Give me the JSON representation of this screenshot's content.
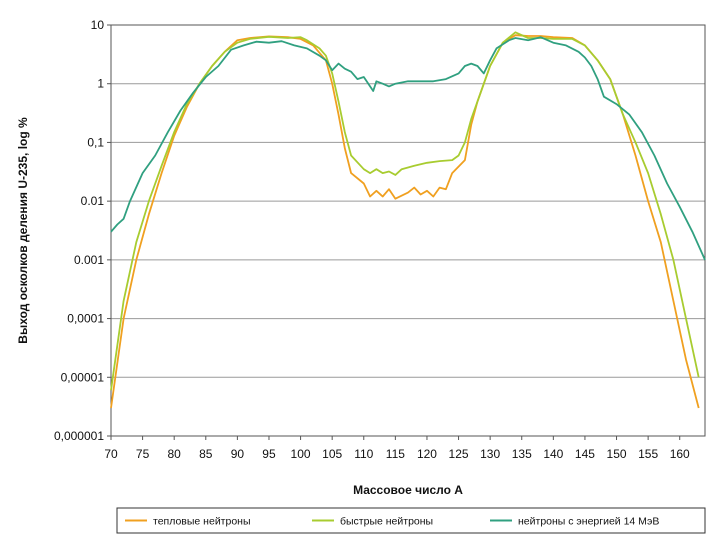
{
  "chart_data": {
    "type": "line",
    "title": "",
    "xlabel": "Массовое число А",
    "ylabel": "Выход осколков деления U-235, log %",
    "y_scale": "log",
    "xlim": [
      70,
      164
    ],
    "ylim": [
      1e-06,
      10
    ],
    "x_ticks": [
      70,
      75,
      80,
      85,
      90,
      95,
      100,
      105,
      110,
      115,
      120,
      125,
      130,
      135,
      140,
      145,
      150,
      155,
      160
    ],
    "y_ticks": [
      {
        "value": 10,
        "label": "10"
      },
      {
        "value": 1,
        "label": "1"
      },
      {
        "value": 0.1,
        "label": "0,1"
      },
      {
        "value": 0.01,
        "label": "0.01"
      },
      {
        "value": 0.001,
        "label": "0.001"
      },
      {
        "value": 0.0001,
        "label": "0,0001"
      },
      {
        "value": 1e-05,
        "label": "0,00001"
      },
      {
        "value": 1e-06,
        "label": "0,000001"
      }
    ],
    "grid": "horizontal",
    "legend_position": "bottom",
    "series": [
      {
        "name": "тепловые нейтроны",
        "color": "#f0a020",
        "points": [
          [
            70,
            3e-06
          ],
          [
            72,
            0.0001
          ],
          [
            74,
            0.001
          ],
          [
            76,
            0.006
          ],
          [
            78,
            0.03
          ],
          [
            80,
            0.13
          ],
          [
            82,
            0.4
          ],
          [
            84,
            1.0
          ],
          [
            86,
            2.0
          ],
          [
            88,
            3.5
          ],
          [
            90,
            5.5
          ],
          [
            92,
            6.0
          ],
          [
            95,
            6.4
          ],
          [
            98,
            6.2
          ],
          [
            100,
            5.8
          ],
          [
            102,
            4.5
          ],
          [
            104,
            2.5
          ],
          [
            105,
            1.0
          ],
          [
            106,
            0.3
          ],
          [
            107,
            0.08
          ],
          [
            108,
            0.03
          ],
          [
            110,
            0.02
          ],
          [
            111,
            0.012
          ],
          [
            112,
            0.015
          ],
          [
            113,
            0.012
          ],
          [
            114,
            0.016
          ],
          [
            115,
            0.011
          ],
          [
            117,
            0.014
          ],
          [
            118,
            0.017
          ],
          [
            119,
            0.013
          ],
          [
            120,
            0.015
          ],
          [
            121,
            0.012
          ],
          [
            122,
            0.017
          ],
          [
            123,
            0.016
          ],
          [
            124,
            0.03
          ],
          [
            126,
            0.05
          ],
          [
            127,
            0.2
          ],
          [
            128,
            0.5
          ],
          [
            130,
            2.0
          ],
          [
            132,
            5.0
          ],
          [
            134,
            6.7
          ],
          [
            136,
            6.5
          ],
          [
            138,
            6.5
          ],
          [
            140,
            6.2
          ],
          [
            143,
            6.0
          ],
          [
            145,
            4.5
          ],
          [
            147,
            2.5
          ],
          [
            149,
            1.2
          ],
          [
            151,
            0.3
          ],
          [
            153,
            0.06
          ],
          [
            155,
            0.01
          ],
          [
            157,
            0.002
          ],
          [
            159,
            0.0002
          ],
          [
            161,
            2e-05
          ],
          [
            163,
            3e-06
          ]
        ]
      },
      {
        "name": "быстрые нейтроны",
        "color": "#a8cc30",
        "points": [
          [
            70,
            6e-06
          ],
          [
            72,
            0.0002
          ],
          [
            74,
            0.002
          ],
          [
            76,
            0.01
          ],
          [
            78,
            0.04
          ],
          [
            80,
            0.15
          ],
          [
            82,
            0.45
          ],
          [
            84,
            1.0
          ],
          [
            86,
            2.0
          ],
          [
            88,
            3.5
          ],
          [
            90,
            5.0
          ],
          [
            92,
            5.8
          ],
          [
            95,
            6.3
          ],
          [
            98,
            6.0
          ],
          [
            100,
            6.2
          ],
          [
            101,
            5.5
          ],
          [
            103,
            4.0
          ],
          [
            104,
            3.0
          ],
          [
            105,
            1.5
          ],
          [
            106,
            0.5
          ],
          [
            107,
            0.15
          ],
          [
            108,
            0.06
          ],
          [
            110,
            0.035
          ],
          [
            111,
            0.03
          ],
          [
            112,
            0.035
          ],
          [
            113,
            0.03
          ],
          [
            114,
            0.032
          ],
          [
            115,
            0.028
          ],
          [
            116,
            0.035
          ],
          [
            118,
            0.04
          ],
          [
            120,
            0.045
          ],
          [
            122,
            0.048
          ],
          [
            124,
            0.05
          ],
          [
            125,
            0.06
          ],
          [
            126,
            0.1
          ],
          [
            127,
            0.25
          ],
          [
            128,
            0.5
          ],
          [
            130,
            2.0
          ],
          [
            132,
            5.0
          ],
          [
            134,
            7.5
          ],
          [
            136,
            6.0
          ],
          [
            138,
            6.0
          ],
          [
            140,
            5.8
          ],
          [
            143,
            5.8
          ],
          [
            145,
            4.5
          ],
          [
            147,
            2.5
          ],
          [
            149,
            1.2
          ],
          [
            151,
            0.3
          ],
          [
            153,
            0.1
          ],
          [
            155,
            0.03
          ],
          [
            157,
            0.006
          ],
          [
            159,
            0.001
          ],
          [
            161,
            0.0001
          ],
          [
            163,
            1e-05
          ]
        ]
      },
      {
        "name": "нейтроны с энергией 14 МэВ",
        "color": "#30a080",
        "points": [
          [
            70,
            0.003
          ],
          [
            71,
            0.004
          ],
          [
            72,
            0.005
          ],
          [
            73,
            0.01
          ],
          [
            75,
            0.03
          ],
          [
            77,
            0.06
          ],
          [
            79,
            0.15
          ],
          [
            81,
            0.35
          ],
          [
            83,
            0.7
          ],
          [
            85,
            1.3
          ],
          [
            87,
            2.0
          ],
          [
            89,
            3.8
          ],
          [
            91,
            4.5
          ],
          [
            93,
            5.2
          ],
          [
            95,
            5.0
          ],
          [
            97,
            5.3
          ],
          [
            99,
            4.5
          ],
          [
            101,
            4.0
          ],
          [
            103,
            3.0
          ],
          [
            104,
            2.5
          ],
          [
            105,
            1.7
          ],
          [
            106,
            2.2
          ],
          [
            107,
            1.8
          ],
          [
            108,
            1.6
          ],
          [
            109,
            1.2
          ],
          [
            110,
            1.3
          ],
          [
            111,
            0.9
          ],
          [
            111.5,
            0.75
          ],
          [
            112,
            1.1
          ],
          [
            113,
            1.0
          ],
          [
            114,
            0.9
          ],
          [
            115,
            1.0
          ],
          [
            117,
            1.1
          ],
          [
            119,
            1.1
          ],
          [
            121,
            1.1
          ],
          [
            123,
            1.2
          ],
          [
            125,
            1.5
          ],
          [
            126,
            2.0
          ],
          [
            127,
            2.2
          ],
          [
            128,
            2.0
          ],
          [
            129,
            1.5
          ],
          [
            130,
            2.5
          ],
          [
            131,
            4.0
          ],
          [
            133,
            5.5
          ],
          [
            134,
            6.0
          ],
          [
            136,
            5.5
          ],
          [
            138,
            6.2
          ],
          [
            140,
            5.0
          ],
          [
            142,
            4.5
          ],
          [
            144,
            3.5
          ],
          [
            145,
            2.8
          ],
          [
            146,
            2.0
          ],
          [
            147,
            1.2
          ],
          [
            148,
            0.6
          ],
          [
            150,
            0.45
          ],
          [
            152,
            0.3
          ],
          [
            154,
            0.15
          ],
          [
            156,
            0.06
          ],
          [
            158,
            0.02
          ],
          [
            160,
            0.008
          ],
          [
            162,
            0.003
          ],
          [
            164,
            0.001
          ]
        ]
      }
    ]
  }
}
